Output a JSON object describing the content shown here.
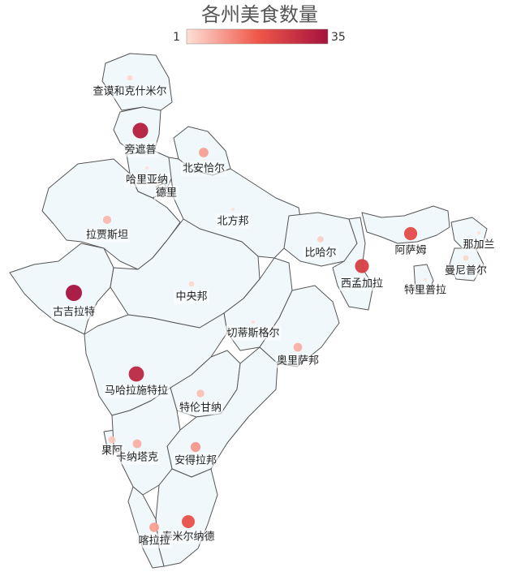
{
  "title": "各州美食数量",
  "legend": {
    "min_label": "1",
    "max_label": "35",
    "min": 1,
    "max": 35,
    "color_low": "#fde0d6",
    "color_mid": "#f0584a",
    "color_high": "#a5123d"
  },
  "chart_data": {
    "type": "map",
    "title": "各州美食数量",
    "value_range": [
      1,
      35
    ],
    "points": [
      {
        "name": "查谟和克什米尔",
        "value": 2
      },
      {
        "name": "旁遮普",
        "value": 32
      },
      {
        "name": "北安恰尔",
        "value": 9
      },
      {
        "name": "哈里亚纳",
        "value": 1
      },
      {
        "name": "德里",
        "value": 1
      },
      {
        "name": "北方邦",
        "value": 1
      },
      {
        "name": "拉贾斯坦",
        "value": 6
      },
      {
        "name": "古吉拉特",
        "value": 35
      },
      {
        "name": "中央邦",
        "value": 2
      },
      {
        "name": "比哈尔",
        "value": 3
      },
      {
        "name": "西孟加拉",
        "value": 24
      },
      {
        "name": "阿萨姆",
        "value": 21
      },
      {
        "name": "那加兰",
        "value": 1
      },
      {
        "name": "曼尼普尔",
        "value": 2
      },
      {
        "name": "特里普拉",
        "value": 1
      },
      {
        "name": "切蒂斯格尔",
        "value": 1
      },
      {
        "name": "奥里萨邦",
        "value": 7
      },
      {
        "name": "马哈拉施特拉",
        "value": 30
      },
      {
        "name": "特伦甘纳",
        "value": 5
      },
      {
        "name": "果阿",
        "value": 4
      },
      {
        "name": "卡纳塔克",
        "value": 7
      },
      {
        "name": "安得拉邦",
        "value": 10
      },
      {
        "name": "泰米尔纳德",
        "value": 20
      },
      {
        "name": "喀拉拉",
        "value": 9
      }
    ]
  }
}
